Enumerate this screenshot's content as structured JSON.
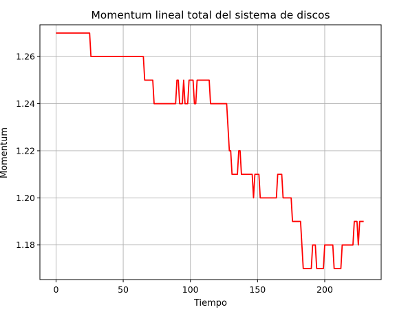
{
  "chart_data": {
    "type": "line",
    "title": "Momentum lineal total del sistema de discos",
    "xlabel": "Tiempo",
    "ylabel": "Momentum",
    "xlim": [
      -12,
      242
    ],
    "ylim": [
      1.1653,
      1.2735
    ],
    "xticks": [
      0,
      50,
      100,
      150,
      200
    ],
    "yticks": [
      1.18,
      1.2,
      1.22,
      1.24,
      1.26
    ],
    "ytick_labels": [
      "1.18",
      "1.20",
      "1.22",
      "1.24",
      "1.26"
    ],
    "grid": true,
    "series": [
      {
        "color": "#ff0000",
        "points": [
          [
            0,
            1.27
          ],
          [
            25,
            1.27
          ],
          [
            26,
            1.26
          ],
          [
            65,
            1.26
          ],
          [
            66,
            1.25
          ],
          [
            72,
            1.25
          ],
          [
            73,
            1.24
          ],
          [
            89,
            1.24
          ],
          [
            90,
            1.25
          ],
          [
            91,
            1.25
          ],
          [
            92,
            1.24
          ],
          [
            94,
            1.24
          ],
          [
            95,
            1.25
          ],
          [
            96,
            1.24
          ],
          [
            98,
            1.24
          ],
          [
            99,
            1.25
          ],
          [
            102,
            1.25
          ],
          [
            103,
            1.24
          ],
          [
            104,
            1.24
          ],
          [
            105,
            1.25
          ],
          [
            114,
            1.25
          ],
          [
            115,
            1.24
          ],
          [
            127,
            1.24
          ],
          [
            129,
            1.22
          ],
          [
            130,
            1.22
          ],
          [
            131,
            1.21
          ],
          [
            135,
            1.21
          ],
          [
            136,
            1.22
          ],
          [
            137,
            1.22
          ],
          [
            138,
            1.21
          ],
          [
            146,
            1.21
          ],
          [
            147,
            1.2
          ],
          [
            148,
            1.21
          ],
          [
            151,
            1.21
          ],
          [
            152,
            1.2
          ],
          [
            164,
            1.2
          ],
          [
            165,
            1.21
          ],
          [
            168,
            1.21
          ],
          [
            169,
            1.2
          ],
          [
            175,
            1.2
          ],
          [
            176,
            1.19
          ],
          [
            182,
            1.19
          ],
          [
            184,
            1.17
          ],
          [
            190,
            1.17
          ],
          [
            191,
            1.18
          ],
          [
            193,
            1.18
          ],
          [
            194,
            1.17
          ],
          [
            199,
            1.17
          ],
          [
            200,
            1.18
          ],
          [
            206,
            1.18
          ],
          [
            207,
            1.17
          ],
          [
            212,
            1.17
          ],
          [
            213,
            1.18
          ],
          [
            221,
            1.18
          ],
          [
            222,
            1.19
          ],
          [
            224,
            1.19
          ],
          [
            225,
            1.18
          ],
          [
            226,
            1.19
          ],
          [
            229,
            1.19
          ]
        ]
      }
    ]
  }
}
